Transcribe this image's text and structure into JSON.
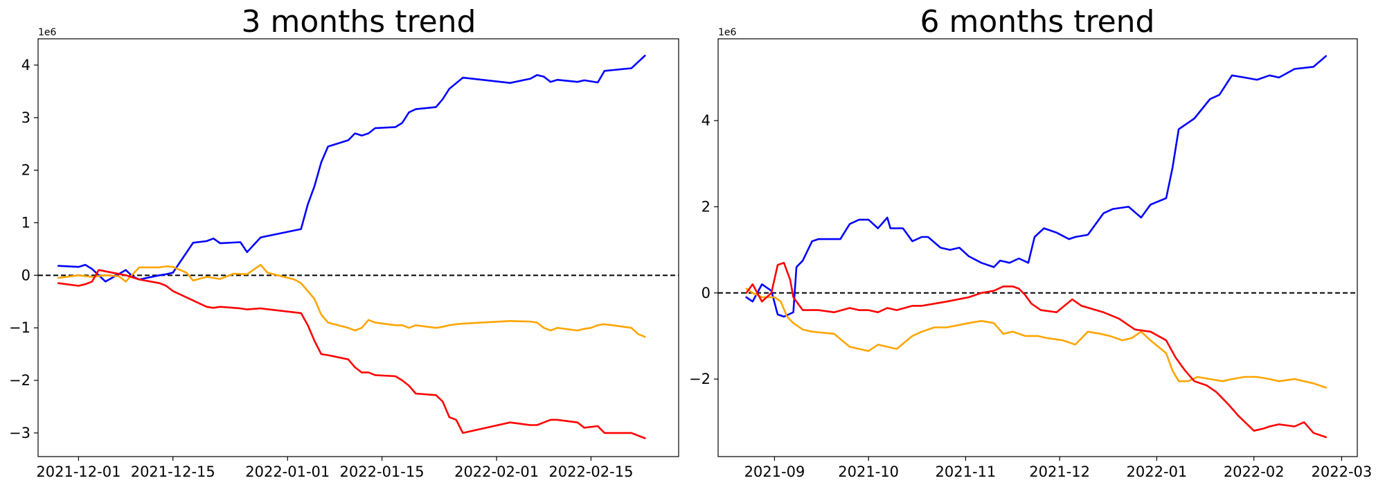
{
  "chart_data": [
    {
      "type": "line",
      "title": "3 months trend",
      "xlabel": "",
      "ylabel": "",
      "y_offset_label": "1e6",
      "xlim": [
        "2021-11-25",
        "2022-02-28"
      ],
      "ylim": [
        -3.45,
        4.5
      ],
      "x_ticks": [
        "2021-12-01",
        "2021-12-15",
        "2022-01-01",
        "2022-01-15",
        "2022-02-01",
        "2022-02-15"
      ],
      "y_ticks": [
        -3,
        -2,
        -1,
        0,
        1,
        2,
        3,
        4
      ],
      "zero_line": {
        "value": 0,
        "style": "dashed",
        "color": "#000000"
      },
      "grid": false,
      "series": [
        {
          "color": "#0000ff",
          "x": [
            "2021-11-28",
            "2021-12-01",
            "2021-12-02",
            "2021-12-03",
            "2021-12-04",
            "2021-12-05",
            "2021-12-08",
            "2021-12-09",
            "2021-12-10",
            "2021-12-13",
            "2021-12-14",
            "2021-12-15",
            "2021-12-18",
            "2021-12-20",
            "2021-12-21",
            "2021-12-22",
            "2021-12-25",
            "2021-12-26",
            "2021-12-28",
            "2022-01-03",
            "2022-01-04",
            "2022-01-05",
            "2022-01-06",
            "2022-01-07",
            "2022-01-10",
            "2022-01-11",
            "2022-01-12",
            "2022-01-13",
            "2022-01-14",
            "2022-01-17",
            "2022-01-18",
            "2022-01-19",
            "2022-01-20",
            "2022-01-23",
            "2022-01-24",
            "2022-01-25",
            "2022-01-27",
            "2022-02-03",
            "2022-02-06",
            "2022-02-07",
            "2022-02-08",
            "2022-02-09",
            "2022-02-10",
            "2022-02-13",
            "2022-02-14",
            "2022-02-16",
            "2022-02-17",
            "2022-02-21",
            "2022-02-23"
          ],
          "values": [
            0.18,
            0.16,
            0.2,
            0.12,
            0.0,
            -0.12,
            0.1,
            -0.02,
            -0.08,
            0.0,
            0.02,
            0.05,
            0.62,
            0.65,
            0.7,
            0.61,
            0.63,
            0.44,
            0.72,
            0.88,
            1.35,
            1.7,
            2.15,
            2.45,
            2.57,
            2.7,
            2.66,
            2.7,
            2.8,
            2.82,
            2.9,
            3.1,
            3.16,
            3.2,
            3.35,
            3.55,
            3.76,
            3.66,
            3.74,
            3.81,
            3.78,
            3.68,
            3.72,
            3.68,
            3.71,
            3.67,
            3.89,
            3.94,
            4.18
          ]
        },
        {
          "color": "#ffa500",
          "x": [
            "2021-11-28",
            "2021-12-01",
            "2021-12-03",
            "2021-12-05",
            "2021-12-07",
            "2021-12-08",
            "2021-12-10",
            "2021-12-13",
            "2021-12-14",
            "2021-12-15",
            "2021-12-17",
            "2021-12-18",
            "2021-12-20",
            "2021-12-21",
            "2021-12-22",
            "2021-12-24",
            "2021-12-26",
            "2021-12-28",
            "2021-12-29",
            "2022-01-02",
            "2022-01-03",
            "2022-01-05",
            "2022-01-06",
            "2022-01-07",
            "2022-01-10",
            "2022-01-11",
            "2022-01-12",
            "2022-01-13",
            "2022-01-14",
            "2022-01-17",
            "2022-01-18",
            "2022-01-19",
            "2022-01-20",
            "2022-01-23",
            "2022-01-24",
            "2022-01-25",
            "2022-01-26",
            "2022-01-27",
            "2022-02-03",
            "2022-02-06",
            "2022-02-07",
            "2022-02-08",
            "2022-02-09",
            "2022-02-10",
            "2022-02-13",
            "2022-02-14",
            "2022-02-15",
            "2022-02-16",
            "2022-02-17",
            "2022-02-21",
            "2022-02-22",
            "2022-02-23"
          ],
          "values": [
            -0.05,
            0.0,
            -0.03,
            0.0,
            -0.02,
            -0.12,
            0.15,
            0.15,
            0.17,
            0.16,
            0.05,
            -0.1,
            -0.03,
            -0.05,
            -0.07,
            0.03,
            0.02,
            0.2,
            0.05,
            -0.08,
            -0.15,
            -0.45,
            -0.75,
            -0.9,
            -1.0,
            -1.05,
            -1.0,
            -0.85,
            -0.9,
            -0.95,
            -0.95,
            -1.0,
            -0.95,
            -1.0,
            -0.98,
            -0.95,
            -0.93,
            -0.92,
            -0.87,
            -0.88,
            -0.9,
            -1.0,
            -1.05,
            -1.0,
            -1.05,
            -1.02,
            -1.0,
            -0.95,
            -0.93,
            -1.0,
            -1.12,
            -1.17
          ]
        },
        {
          "color": "#ff0000",
          "x": [
            "2021-11-28",
            "2021-12-01",
            "2021-12-02",
            "2021-12-03",
            "2021-12-04",
            "2021-12-08",
            "2021-12-10",
            "2021-12-13",
            "2021-12-14",
            "2021-12-15",
            "2021-12-18",
            "2021-12-20",
            "2021-12-21",
            "2021-12-22",
            "2021-12-25",
            "2021-12-26",
            "2021-12-28",
            "2022-01-03",
            "2022-01-04",
            "2022-01-05",
            "2022-01-06",
            "2022-01-07",
            "2022-01-10",
            "2022-01-11",
            "2022-01-12",
            "2022-01-13",
            "2022-01-14",
            "2022-01-17",
            "2022-01-18",
            "2022-01-19",
            "2022-01-20",
            "2022-01-23",
            "2022-01-24",
            "2022-01-25",
            "2022-01-26",
            "2022-01-27",
            "2022-02-03",
            "2022-02-06",
            "2022-02-07",
            "2022-02-08",
            "2022-02-09",
            "2022-02-10",
            "2022-02-13",
            "2022-02-14",
            "2022-02-16",
            "2022-02-17",
            "2022-02-21",
            "2022-02-23"
          ],
          "values": [
            -0.15,
            -0.2,
            -0.17,
            -0.12,
            0.1,
            0.0,
            -0.08,
            -0.15,
            -0.2,
            -0.3,
            -0.48,
            -0.6,
            -0.62,
            -0.6,
            -0.63,
            -0.65,
            -0.63,
            -0.72,
            -0.95,
            -1.25,
            -1.5,
            -1.52,
            -1.6,
            -1.75,
            -1.85,
            -1.85,
            -1.9,
            -1.92,
            -2.0,
            -2.1,
            -2.25,
            -2.28,
            -2.4,
            -2.7,
            -2.75,
            -3.0,
            -2.8,
            -2.85,
            -2.85,
            -2.8,
            -2.75,
            -2.75,
            -2.8,
            -2.9,
            -2.87,
            -3.0,
            -3.0,
            -3.1
          ]
        }
      ]
    },
    {
      "type": "line",
      "title": "6 months trend",
      "xlabel": "",
      "ylabel": "",
      "y_offset_label": "1e6",
      "xlim": [
        "2021-08-14",
        "2022-03-06"
      ],
      "ylim": [
        -3.8,
        5.9
      ],
      "x_ticks": [
        "2021-09",
        "2021-10",
        "2021-11",
        "2021-12",
        "2022-01",
        "2022-02",
        "2022-03"
      ],
      "y_ticks": [
        -2,
        0,
        2,
        4
      ],
      "zero_line": {
        "value": 0,
        "style": "dashed",
        "color": "#000000"
      },
      "grid": false,
      "series": [
        {
          "color": "#0000ff",
          "x": [
            "2021-08-23",
            "2021-08-25",
            "2021-08-28",
            "2021-08-31",
            "2021-09-02",
            "2021-09-04",
            "2021-09-07",
            "2021-09-08",
            "2021-09-10",
            "2021-09-13",
            "2021-09-15",
            "2021-09-22",
            "2021-09-25",
            "2021-09-28",
            "2021-10-01",
            "2021-10-04",
            "2021-10-07",
            "2021-10-08",
            "2021-10-12",
            "2021-10-15",
            "2021-10-18",
            "2021-10-20",
            "2021-10-24",
            "2021-10-27",
            "2021-10-30",
            "2021-11-02",
            "2021-11-06",
            "2021-11-10",
            "2021-11-12",
            "2021-11-15",
            "2021-11-18",
            "2021-11-21",
            "2021-11-23",
            "2021-11-26",
            "2021-11-30",
            "2021-12-04",
            "2021-12-06",
            "2021-12-10",
            "2021-12-15",
            "2021-12-18",
            "2021-12-23",
            "2021-12-27",
            "2021-12-30",
            "2022-01-04",
            "2022-01-06",
            "2022-01-08",
            "2022-01-11",
            "2022-01-13",
            "2022-01-18",
            "2022-01-21",
            "2022-01-25",
            "2022-01-29",
            "2022-02-02",
            "2022-02-06",
            "2022-02-09",
            "2022-02-14",
            "2022-02-20",
            "2022-02-24"
          ],
          "values": [
            -0.1,
            -0.2,
            0.2,
            0.05,
            -0.5,
            -0.55,
            -0.45,
            0.6,
            0.75,
            1.2,
            1.25,
            1.25,
            1.6,
            1.7,
            1.7,
            1.5,
            1.75,
            1.5,
            1.5,
            1.2,
            1.3,
            1.3,
            1.05,
            1.0,
            1.05,
            0.85,
            0.7,
            0.6,
            0.75,
            0.7,
            0.8,
            0.7,
            1.3,
            1.5,
            1.4,
            1.25,
            1.3,
            1.35,
            1.85,
            1.95,
            2.0,
            1.75,
            2.05,
            2.2,
            2.9,
            3.8,
            3.95,
            4.05,
            4.5,
            4.6,
            5.05,
            5.0,
            4.95,
            5.05,
            5.0,
            5.2,
            5.25,
            5.5
          ]
        },
        {
          "color": "#ffa500",
          "x": [
            "2021-08-23",
            "2021-08-25",
            "2021-08-28",
            "2021-09-01",
            "2021-09-03",
            "2021-09-05",
            "2021-09-07",
            "2021-09-10",
            "2021-09-13",
            "2021-09-20",
            "2021-09-25",
            "2021-09-28",
            "2021-10-01",
            "2021-10-04",
            "2021-10-07",
            "2021-10-10",
            "2021-10-15",
            "2021-10-18",
            "2021-10-22",
            "2021-10-26",
            "2021-11-02",
            "2021-11-06",
            "2021-11-10",
            "2021-11-13",
            "2021-11-16",
            "2021-11-20",
            "2021-11-24",
            "2021-11-27",
            "2021-12-02",
            "2021-12-06",
            "2021-12-10",
            "2021-12-14",
            "2021-12-17",
            "2021-12-21",
            "2021-12-24",
            "2021-12-27",
            "2021-12-30",
            "2022-01-04",
            "2022-01-06",
            "2022-01-08",
            "2022-01-11",
            "2022-01-14",
            "2022-01-18",
            "2022-01-22",
            "2022-01-25",
            "2022-01-29",
            "2022-02-02",
            "2022-02-06",
            "2022-02-09",
            "2022-02-14",
            "2022-02-20",
            "2022-02-24"
          ],
          "values": [
            0.1,
            0.0,
            -0.1,
            -0.1,
            -0.2,
            -0.55,
            -0.7,
            -0.85,
            -0.9,
            -0.95,
            -1.25,
            -1.3,
            -1.35,
            -1.2,
            -1.25,
            -1.3,
            -1.0,
            -0.9,
            -0.8,
            -0.8,
            -0.7,
            -0.65,
            -0.7,
            -0.95,
            -0.9,
            -1.0,
            -1.0,
            -1.05,
            -1.1,
            -1.2,
            -0.9,
            -0.95,
            -1.0,
            -1.1,
            -1.05,
            -0.9,
            -1.1,
            -1.4,
            -1.8,
            -2.05,
            -2.05,
            -1.95,
            -2.0,
            -2.05,
            -2.0,
            -1.95,
            -1.95,
            -2.0,
            -2.05,
            -2.0,
            -2.1,
            -2.2
          ]
        },
        {
          "color": "#ff0000",
          "x": [
            "2021-08-23",
            "2021-08-25",
            "2021-08-28",
            "2021-08-31",
            "2021-09-02",
            "2021-09-04",
            "2021-09-06",
            "2021-09-07",
            "2021-09-10",
            "2021-09-15",
            "2021-09-20",
            "2021-09-25",
            "2021-09-28",
            "2021-10-01",
            "2021-10-04",
            "2021-10-07",
            "2021-10-10",
            "2021-10-15",
            "2021-10-18",
            "2021-10-22",
            "2021-10-26",
            "2021-11-02",
            "2021-11-06",
            "2021-11-10",
            "2021-11-13",
            "2021-11-16",
            "2021-11-18",
            "2021-11-20",
            "2021-11-22",
            "2021-11-25",
            "2021-11-30",
            "2021-12-05",
            "2021-12-08",
            "2021-12-15",
            "2021-12-20",
            "2021-12-25",
            "2021-12-30",
            "2022-01-04",
            "2022-01-07",
            "2022-01-10",
            "2022-01-13",
            "2022-01-17",
            "2022-01-20",
            "2022-01-24",
            "2022-01-27",
            "2022-02-01",
            "2022-02-04",
            "2022-02-06",
            "2022-02-09",
            "2022-02-14",
            "2022-02-17",
            "2022-02-20",
            "2022-02-24"
          ],
          "values": [
            0.0,
            0.2,
            -0.2,
            0.0,
            0.65,
            0.7,
            0.3,
            -0.1,
            -0.4,
            -0.4,
            -0.45,
            -0.35,
            -0.4,
            -0.4,
            -0.45,
            -0.35,
            -0.4,
            -0.3,
            -0.3,
            -0.25,
            -0.2,
            -0.1,
            0.0,
            0.05,
            0.15,
            0.15,
            0.1,
            -0.05,
            -0.25,
            -0.4,
            -0.45,
            -0.15,
            -0.3,
            -0.45,
            -0.6,
            -0.85,
            -0.9,
            -1.1,
            -1.5,
            -1.8,
            -2.05,
            -2.15,
            -2.3,
            -2.6,
            -2.85,
            -3.2,
            -3.15,
            -3.1,
            -3.05,
            -3.1,
            -3.0,
            -3.25,
            -3.35
          ]
        }
      ]
    }
  ]
}
